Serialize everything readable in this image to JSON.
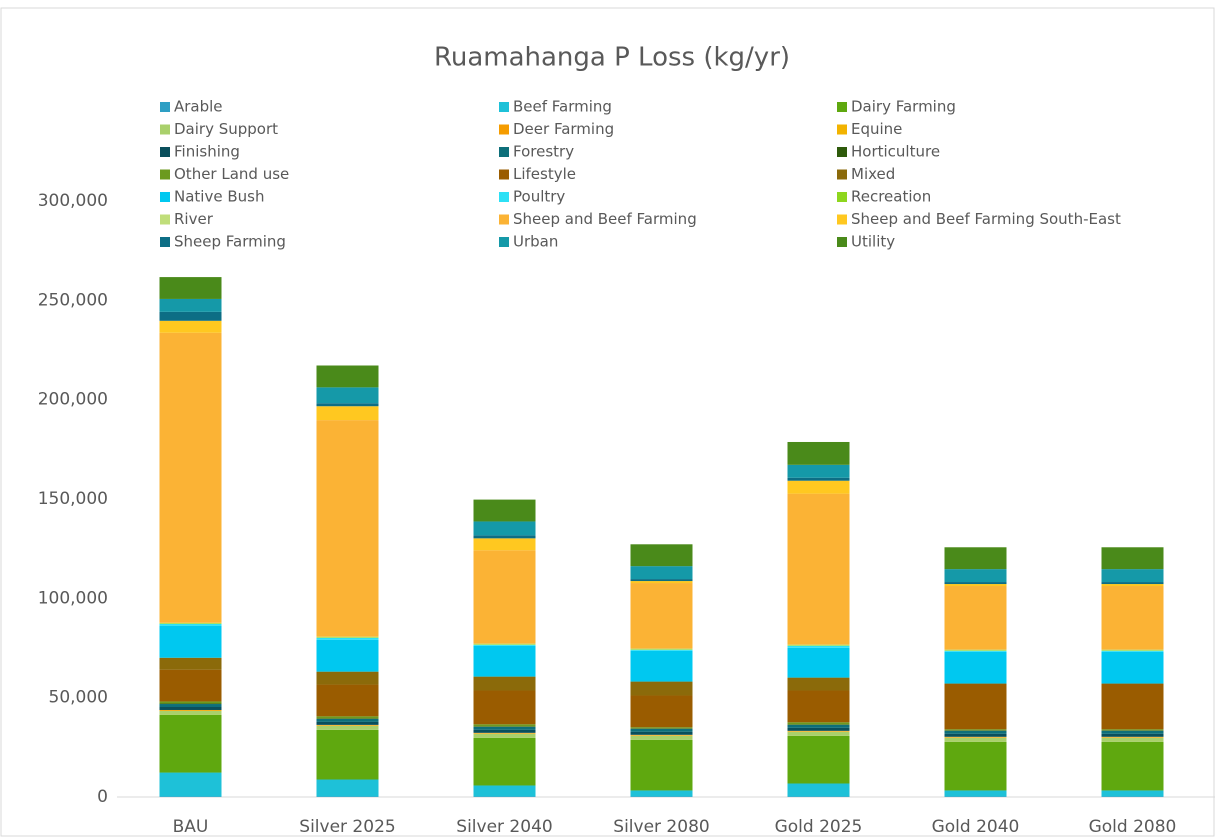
{
  "chart_data": {
    "type": "stacked_bar",
    "title": "Ruamahanga P Loss (kg/yr)",
    "categories": [
      "BAU",
      "Silver 2025",
      "Silver 2040",
      "Silver 2080",
      "Gold 2025",
      "Gold 2040",
      "Gold 2080"
    ],
    "ylim": [
      0,
      300000
    ],
    "yticks": [
      0,
      {
        "value": 50000,
        "label": "50,000"
      },
      {
        "value": 100000,
        "label": "100,000"
      },
      {
        "value": 150000,
        "label": "150,000"
      },
      {
        "value": 200000,
        "label": "200,000"
      },
      {
        "value": 250000,
        "label": "250,000"
      },
      {
        "value": 300000,
        "label": "300,000"
      }
    ],
    "legend": "top",
    "series": [
      {
        "name": "Arable",
        "color": "#2e9fc4",
        "values": [
          300,
          300,
          300,
          300,
          300,
          300,
          300
        ]
      },
      {
        "name": "Beef Farming",
        "color": "#1ec1d8",
        "values": [
          12000,
          8500,
          5500,
          3000,
          6500,
          3000,
          3000
        ]
      },
      {
        "name": "Dairy Farming",
        "color": "#5fa80f",
        "values": [
          29000,
          25000,
          24000,
          25500,
          24000,
          24500,
          24500
        ]
      },
      {
        "name": "Dairy Support",
        "color": "#a9d06b",
        "values": [
          2000,
          2000,
          2000,
          2000,
          2000,
          2000,
          2000
        ]
      },
      {
        "name": "Deer Farming",
        "color": "#f59c00",
        "values": [
          300,
          300,
          300,
          300,
          300,
          300,
          300
        ]
      },
      {
        "name": "Equine",
        "color": "#f2b300",
        "values": [
          200,
          200,
          200,
          200,
          200,
          200,
          200
        ]
      },
      {
        "name": "Finishing",
        "color": "#0a4f5c",
        "values": [
          1500,
          1500,
          1500,
          1500,
          1500,
          1500,
          1500
        ]
      },
      {
        "name": "Forestry",
        "color": "#0e6f7a",
        "values": [
          1500,
          1500,
          1500,
          1500,
          1500,
          1500,
          1500
        ]
      },
      {
        "name": "Horticulture",
        "color": "#2e5a0b",
        "values": [
          300,
          300,
          300,
          300,
          300,
          300,
          300
        ]
      },
      {
        "name": "Other Land use",
        "color": "#6c9a1f",
        "values": [
          1000,
          1000,
          1000,
          500,
          1000,
          500,
          500
        ]
      },
      {
        "name": "Lifestyle",
        "color": "#9a5c00",
        "values": [
          16000,
          16000,
          17000,
          16000,
          16000,
          23000,
          23000
        ]
      },
      {
        "name": "Mixed",
        "color": "#8b6a0a",
        "values": [
          6000,
          6500,
          7000,
          7000,
          6500,
          0,
          0
        ]
      },
      {
        "name": "Native Bush",
        "color": "#00c8f0",
        "values": [
          16000,
          16000,
          15500,
          15500,
          15000,
          16000,
          16000
        ]
      },
      {
        "name": "Poultry",
        "color": "#2de0f5",
        "values": [
          1000,
          1000,
          500,
          500,
          1000,
          500,
          500
        ]
      },
      {
        "name": "Recreation",
        "color": "#8ed61e",
        "values": [
          300,
          300,
          300,
          300,
          300,
          300,
          300
        ]
      },
      {
        "name": "River",
        "color": "#c0de7a",
        "values": [
          300,
          300,
          300,
          300,
          300,
          300,
          300
        ]
      },
      {
        "name": "Sheep and Beef Farming",
        "color": "#fbb335",
        "values": [
          146000,
          109000,
          47000,
          33000,
          76000,
          32000,
          32000
        ]
      },
      {
        "name": "Sheep and Beef Farming South-East",
        "color": "#ffc820",
        "values": [
          6000,
          7000,
          6000,
          1000,
          6500,
          1000,
          1000
        ]
      },
      {
        "name": "Sheep Farming",
        "color": "#0d6e85",
        "values": [
          4500,
          1500,
          1500,
          1000,
          1500,
          1000,
          1000
        ]
      },
      {
        "name": "Urban",
        "color": "#1599a8",
        "values": [
          6500,
          8000,
          7000,
          6500,
          6500,
          6500,
          6500
        ]
      },
      {
        "name": "Utility",
        "color": "#4a8a1a",
        "values": [
          11000,
          11000,
          11000,
          11000,
          11500,
          11000,
          11000
        ]
      }
    ]
  }
}
